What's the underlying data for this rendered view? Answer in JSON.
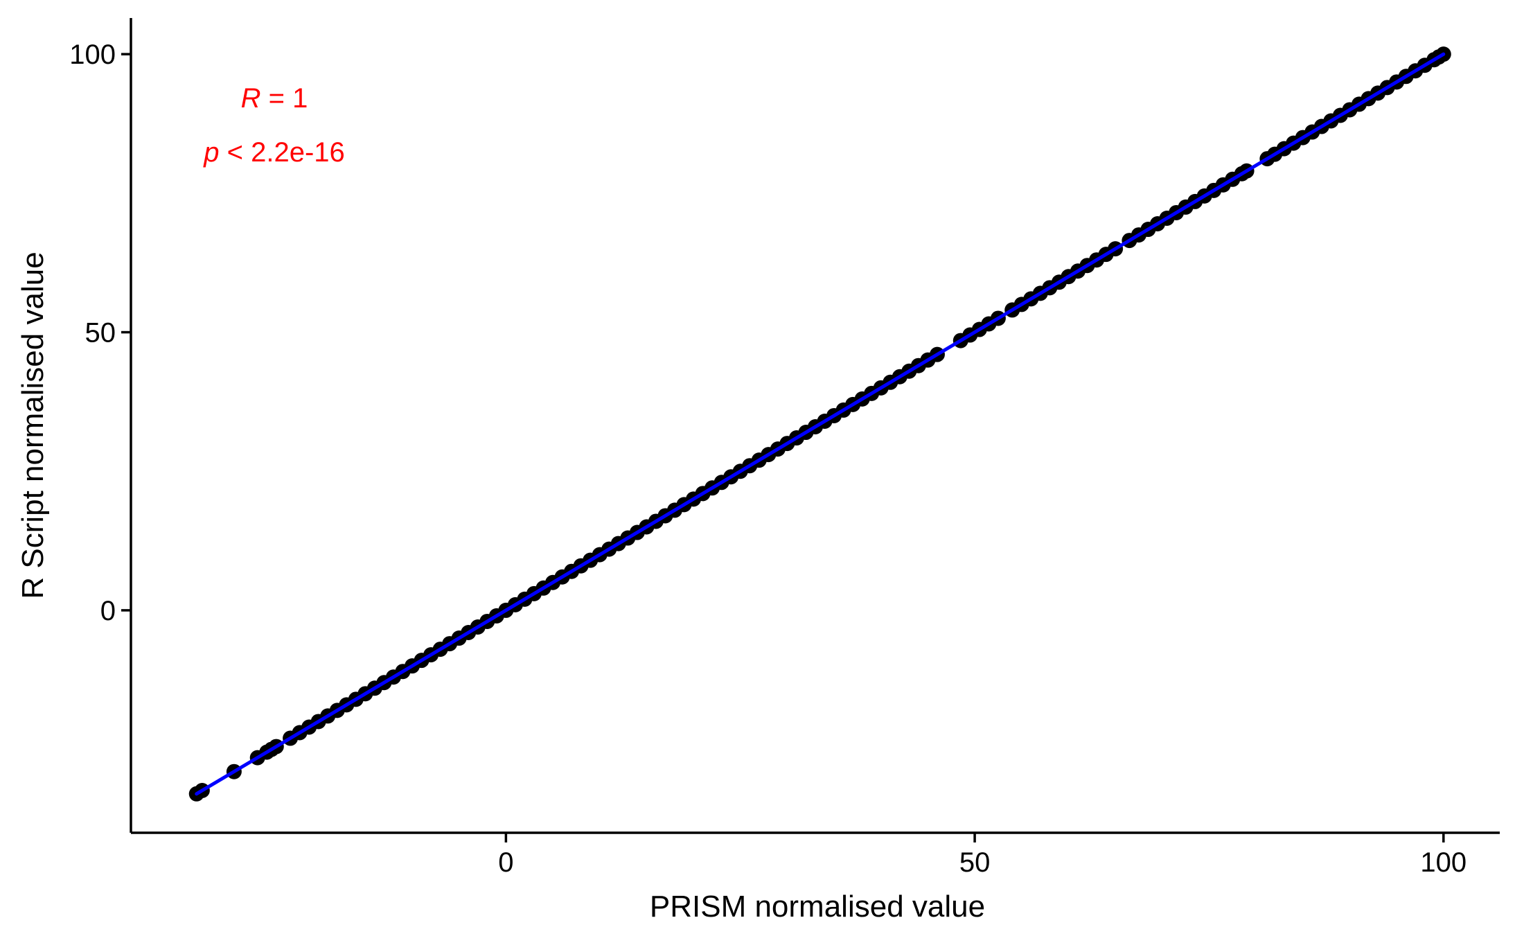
{
  "chart_data": {
    "type": "scatter",
    "title": "",
    "xlabel": "PRISM normalised value",
    "ylabel": "R Script normalised value",
    "xlim": [
      -40,
      106
    ],
    "ylim": [
      -40,
      106.5
    ],
    "x_ticks": [
      0,
      50,
      100
    ],
    "y_ticks": [
      0,
      50,
      100
    ],
    "x_tick_labels": [
      "0",
      "50",
      "100"
    ],
    "y_tick_labels": [
      "0",
      "50",
      "100"
    ],
    "grid": false,
    "legend": "none",
    "point_color": "#000000",
    "fit_line_color": "#0000ff",
    "annotation_color": "#ff0000",
    "annotations": {
      "r_symbol": "R",
      "r_rest": " = 1",
      "p_symbol": "p",
      "p_rest": " < 2.2e-16",
      "position": "top-left"
    },
    "fit_line": {
      "x": [
        -33,
        100
      ],
      "y": [
        -33,
        100
      ]
    },
    "series": [
      {
        "type": "points",
        "x": [
          -33,
          -32.4,
          -29,
          -26.5,
          -25.5,
          -25,
          -24.5,
          -23,
          -22,
          -21,
          -20,
          -19,
          -18,
          -17,
          -16,
          -15,
          -14,
          -13,
          -12,
          -11,
          -10,
          -9,
          -8,
          -7,
          -6,
          -5,
          -4,
          -3,
          -2,
          -1,
          0,
          1,
          2,
          3,
          4,
          5,
          6,
          7,
          8,
          9,
          10,
          11,
          12,
          13,
          14,
          15,
          16,
          17,
          18,
          19,
          20,
          21,
          22,
          23,
          24,
          25,
          26,
          27,
          28,
          29,
          30,
          31,
          32,
          33,
          34,
          35,
          36,
          37,
          38,
          39,
          40,
          41,
          42,
          43,
          44,
          45,
          46,
          48.5,
          49.5,
          50.5,
          51.5,
          52.5,
          54,
          55,
          56,
          57,
          58,
          59,
          60,
          61,
          62,
          63,
          64,
          65,
          66.5,
          67.5,
          68.5,
          69.5,
          70.5,
          71.5,
          72.5,
          73.5,
          74.5,
          75.5,
          76.5,
          77.5,
          78.5,
          79,
          81.2,
          82,
          83,
          84,
          85,
          86,
          87,
          88,
          89,
          90,
          91,
          92,
          93,
          94,
          95,
          96,
          97,
          98,
          99,
          99.5,
          100
        ],
        "y": [
          -33,
          -32.4,
          -29,
          -26.5,
          -25.5,
          -25,
          -24.5,
          -23,
          -22,
          -21,
          -20,
          -19,
          -18,
          -17,
          -16,
          -15,
          -14,
          -13,
          -12,
          -11,
          -10,
          -9,
          -8,
          -7,
          -6,
          -5,
          -4,
          -3,
          -2,
          -1,
          0,
          1,
          2,
          3,
          4,
          5,
          6,
          7,
          8,
          9,
          10,
          11,
          12,
          13,
          14,
          15,
          16,
          17,
          18,
          19,
          20,
          21,
          22,
          23,
          24,
          25,
          26,
          27,
          28,
          29,
          30,
          31,
          32,
          33,
          34,
          35,
          36,
          37,
          38,
          39,
          40,
          41,
          42,
          43,
          44,
          45,
          46,
          48.5,
          49.5,
          50.5,
          51.5,
          52.5,
          54,
          55,
          56,
          57,
          58,
          59,
          60,
          61,
          62,
          63,
          64,
          65,
          66.5,
          67.5,
          68.5,
          69.5,
          70.5,
          71.5,
          72.5,
          73.5,
          74.5,
          75.5,
          76.5,
          77.5,
          78.5,
          79,
          81.2,
          82,
          83,
          84,
          85,
          86,
          87,
          88,
          89,
          90,
          91,
          92,
          93,
          94,
          95,
          96,
          97,
          98,
          99,
          99.5,
          100
        ]
      }
    ]
  }
}
